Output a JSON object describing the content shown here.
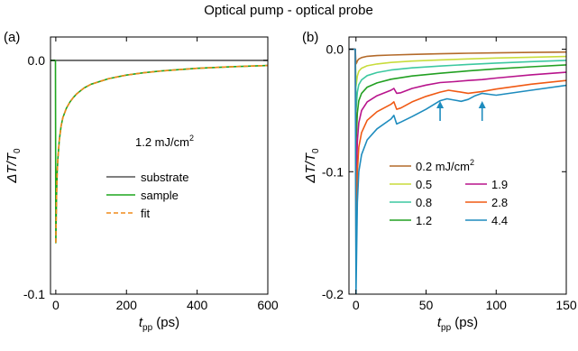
{
  "figure_title": "Optical pump - optical probe",
  "chart_data": [
    {
      "panel": "(a)",
      "type": "line",
      "xlabel": "t_pp (ps)",
      "ylabel": "ΔT/T_0",
      "xlim": [
        -15,
        600
      ],
      "ylim": [
        -0.1,
        0.01
      ],
      "xticks": [
        0,
        200,
        400,
        600
      ],
      "xtick_labels": [
        "0",
        "200",
        "400",
        "600"
      ],
      "yticks": [
        0.0,
        -0.1
      ],
      "ytick_labels": [
        "0.0",
        "-0.1"
      ],
      "annotation": "1.2 mJ/cm",
      "annotation_sup": "2",
      "legend_placement": "center-right",
      "series": [
        {
          "name": "substrate",
          "color": "#555555",
          "dash": "none",
          "x": [
            -15,
            0,
            100,
            200,
            300,
            400,
            500,
            600
          ],
          "y": [
            0.0,
            0.0,
            0.0,
            0.0,
            0.0,
            0.0,
            0.0,
            0.0
          ]
        },
        {
          "name": "sample",
          "color": "#1ea51e",
          "dash": "none",
          "x": [
            -15,
            -1,
            0,
            1,
            2,
            4,
            6,
            10,
            15,
            20,
            30,
            40,
            50,
            60,
            80,
            100,
            150,
            200,
            250,
            300,
            400,
            500,
            600
          ],
          "y": [
            0.0,
            0.0,
            -0.078,
            -0.068,
            -0.058,
            -0.048,
            -0.042,
            -0.034,
            -0.028,
            -0.0245,
            -0.0205,
            -0.0178,
            -0.0158,
            -0.0142,
            -0.0118,
            -0.0102,
            -0.0078,
            -0.0063,
            -0.0053,
            -0.0045,
            -0.0034,
            -0.0027,
            -0.0022
          ]
        },
        {
          "name": "fit",
          "color": "#f08a1a",
          "dash": "5,3",
          "x": [
            0,
            1,
            2,
            4,
            6,
            10,
            15,
            20,
            30,
            40,
            50,
            60,
            80,
            100,
            150,
            200,
            250,
            300,
            400,
            500,
            600
          ],
          "y": [
            -0.078,
            -0.068,
            -0.058,
            -0.048,
            -0.042,
            -0.034,
            -0.028,
            -0.0245,
            -0.0205,
            -0.0178,
            -0.0158,
            -0.0142,
            -0.0118,
            -0.0102,
            -0.0078,
            -0.0063,
            -0.0053,
            -0.0045,
            -0.0034,
            -0.0027,
            -0.0022
          ]
        }
      ]
    },
    {
      "panel": "(b)",
      "type": "line",
      "xlabel": "t_pp (ps)",
      "ylabel": "ΔT/T_0",
      "xlim": [
        -5,
        150
      ],
      "ylim": [
        -0.2,
        0.01
      ],
      "xticks": [
        0,
        50,
        100,
        150
      ],
      "xtick_labels": [
        "0",
        "50",
        "100",
        "150"
      ],
      "yticks": [
        0.0,
        -0.1,
        -0.2
      ],
      "ytick_labels": [
        "0.0",
        "-0.1",
        "-0.2"
      ],
      "arrows_at_x": [
        60,
        90
      ],
      "legend_placement": "lower-middle",
      "legend_unit": "mJ/cm",
      "legend_unit_sup": "2",
      "series": [
        {
          "name": "0.2",
          "color": "#b36a2a",
          "x": [
            -5,
            -0.5,
            0,
            0.5,
            1,
            2,
            4,
            8,
            15,
            25,
            40,
            60,
            80,
            100,
            125,
            150
          ],
          "y": [
            0,
            0,
            -0.012,
            -0.011,
            -0.0095,
            -0.008,
            -0.0068,
            -0.0058,
            -0.0052,
            -0.0047,
            -0.0042,
            -0.0037,
            -0.0033,
            -0.003,
            -0.0026,
            -0.0023
          ]
        },
        {
          "name": "0.5",
          "color": "#c8dc3c",
          "x": [
            -5,
            -0.5,
            0,
            0.5,
            1,
            2,
            4,
            8,
            15,
            25,
            40,
            60,
            80,
            100,
            125,
            150
          ],
          "y": [
            0,
            0,
            -0.03,
            -0.026,
            -0.022,
            -0.018,
            -0.0155,
            -0.0135,
            -0.012,
            -0.0108,
            -0.0097,
            -0.0087,
            -0.0079,
            -0.0072,
            -0.0065,
            -0.0059
          ]
        },
        {
          "name": "0.8",
          "color": "#3cc8a0",
          "x": [
            -5,
            -0.5,
            0,
            0.5,
            1,
            2,
            4,
            8,
            15,
            25,
            40,
            60,
            80,
            100,
            125,
            150
          ],
          "y": [
            0,
            0,
            -0.05,
            -0.042,
            -0.035,
            -0.029,
            -0.025,
            -0.0215,
            -0.019,
            -0.017,
            -0.0152,
            -0.0137,
            -0.0124,
            -0.0113,
            -0.0101,
            -0.0091
          ]
        },
        {
          "name": "1.2",
          "color": "#22a022",
          "x": [
            -5,
            -0.5,
            0,
            0.5,
            1,
            2,
            4,
            8,
            15,
            25,
            40,
            60,
            80,
            100,
            125,
            150
          ],
          "y": [
            0,
            0,
            -0.078,
            -0.064,
            -0.052,
            -0.042,
            -0.036,
            -0.031,
            -0.0275,
            -0.0245,
            -0.0218,
            -0.0196,
            -0.0177,
            -0.016,
            -0.0143,
            -0.0128
          ]
        },
        {
          "name": "1.9",
          "color": "#b8148c",
          "x": [
            -5,
            -0.5,
            0,
            0.5,
            1,
            2,
            4,
            8,
            15,
            25,
            27,
            29,
            32,
            40,
            50,
            60,
            70,
            80,
            90,
            100,
            125,
            150
          ],
          "y": [
            0,
            0,
            -0.12,
            -0.095,
            -0.075,
            -0.06,
            -0.05,
            -0.043,
            -0.038,
            -0.0335,
            -0.032,
            -0.036,
            -0.0355,
            -0.032,
            -0.0293,
            -0.0272,
            -0.0265,
            -0.0255,
            -0.0248,
            -0.0235,
            -0.0209,
            -0.0188
          ]
        },
        {
          "name": "2.8",
          "color": "#f05a14",
          "x": [
            -5,
            -0.5,
            0,
            0.5,
            1,
            2,
            4,
            8,
            15,
            25,
            27,
            29,
            32,
            40,
            50,
            60,
            66,
            72,
            80,
            90,
            100,
            125,
            150
          ],
          "y": [
            0,
            0,
            -0.165,
            -0.13,
            -0.1,
            -0.08,
            -0.068,
            -0.058,
            -0.051,
            -0.045,
            -0.043,
            -0.049,
            -0.048,
            -0.043,
            -0.0385,
            -0.035,
            -0.0335,
            -0.0345,
            -0.036,
            -0.0345,
            -0.0325,
            -0.0285,
            -0.0255
          ]
        },
        {
          "name": "4.4",
          "color": "#1e8cbe",
          "x": [
            -5,
            -0.5,
            0,
            0.5,
            1,
            2,
            4,
            8,
            15,
            25,
            27,
            29,
            32,
            40,
            50,
            55,
            60,
            65,
            70,
            75,
            80,
            85,
            90,
            95,
            100,
            125,
            150
          ],
          "y": [
            0,
            0,
            -0.2,
            -0.16,
            -0.125,
            -0.1,
            -0.086,
            -0.074,
            -0.065,
            -0.057,
            -0.054,
            -0.061,
            -0.0595,
            -0.055,
            -0.049,
            -0.0455,
            -0.042,
            -0.0405,
            -0.0415,
            -0.0425,
            -0.041,
            -0.038,
            -0.036,
            -0.0368,
            -0.0375,
            -0.0335,
            -0.0295
          ]
        }
      ]
    }
  ]
}
